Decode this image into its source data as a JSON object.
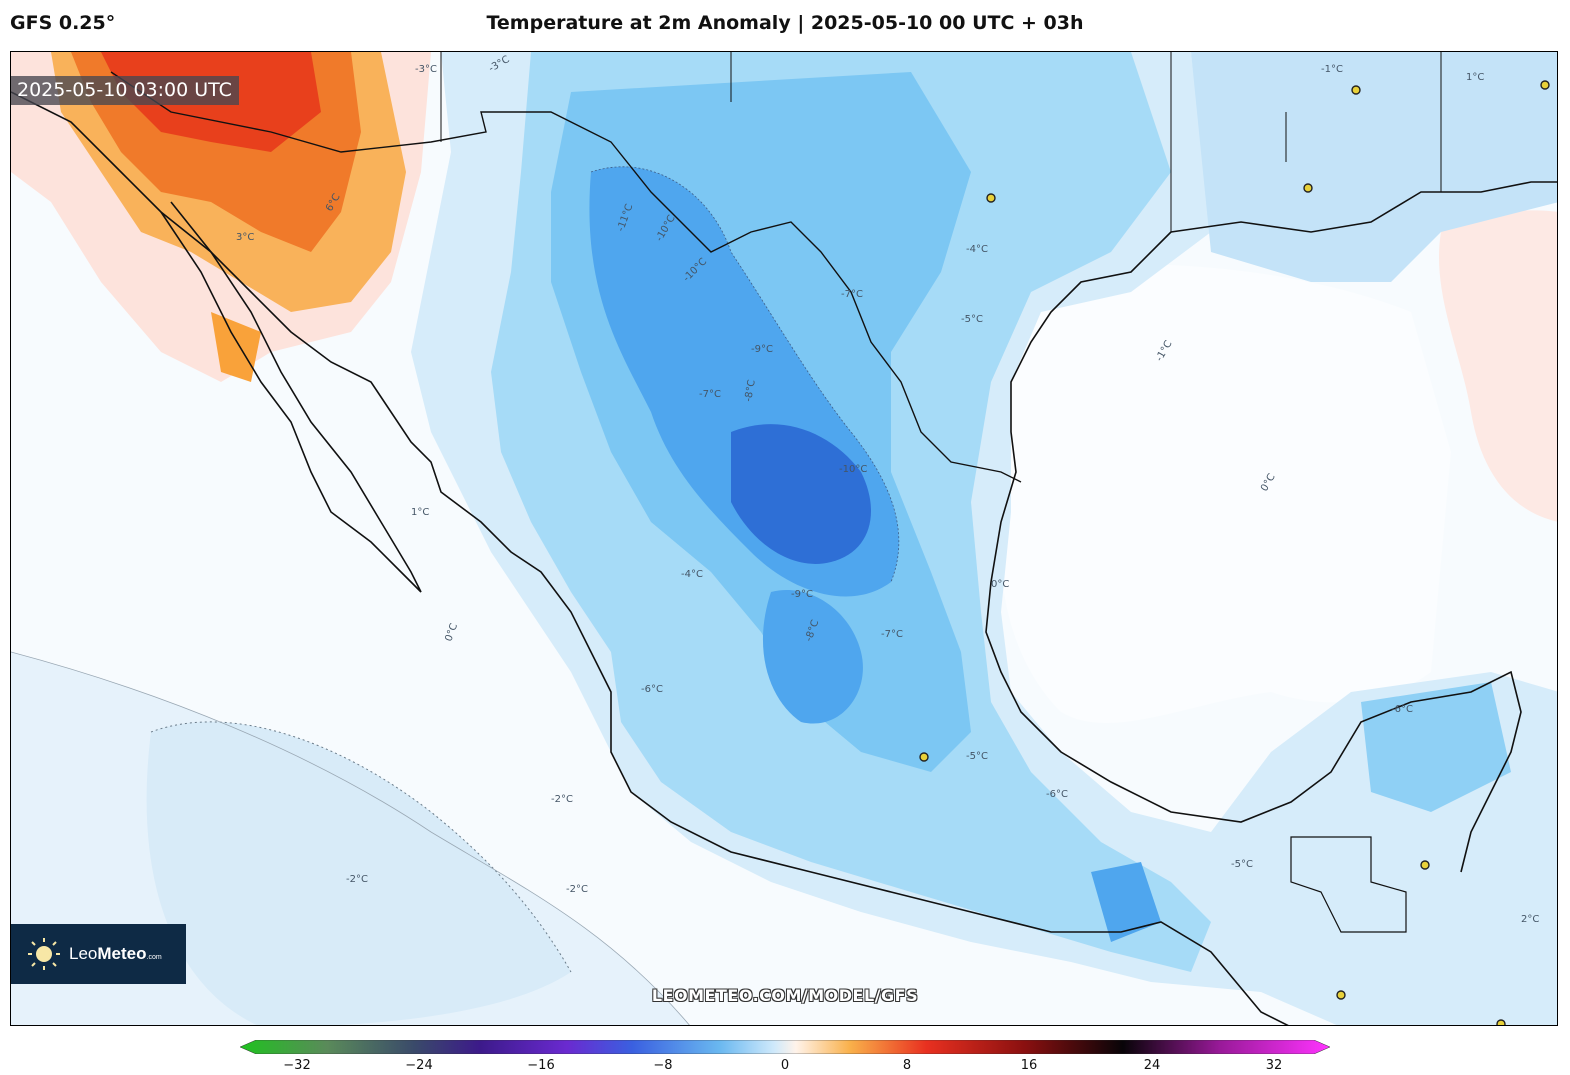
{
  "header": {
    "model": "GFS 0.25°",
    "title": "Temperature at 2m Anomaly | 2025-05-10 00 UTC + 03h"
  },
  "valid_time": "2025-05-10 03:00 UTC",
  "logo": {
    "name_light": "Leo",
    "name_bold": "Meteo",
    "suffix": ".com"
  },
  "watermark": "LEOMETEO.COM/MODEL/GFS",
  "colorbar": {
    "ticks": [
      "−32",
      "−24",
      "−16",
      "−8",
      "0",
      "8",
      "16",
      "24",
      "32"
    ],
    "min": -32,
    "max": 32
  },
  "contour_labels": [
    "-11°C",
    "-10°C",
    "-10°C",
    "-10°C",
    "-9°C",
    "-9°C",
    "-8°C",
    "-8°C",
    "-7°C",
    "-7°C",
    "-7°C",
    "-6°C",
    "-6°C",
    "-6°C",
    "-5°C",
    "-5°C",
    "-5°C",
    "-4°C",
    "-4°C",
    "-3°C",
    "-3°C",
    "-2°C",
    "-2°C",
    "-2°C",
    "-1°C",
    "-1°C",
    "0°C",
    "0°C",
    "0°C",
    "1°C",
    "1°C",
    "2°C",
    "3°C",
    "6°C"
  ],
  "colors": {
    "background_sea": "#f7fbfe",
    "cold_light": "#d6ecfa",
    "cold_mid": "#8fd0f5",
    "cold_strong": "#4fa6ee",
    "cold_deep": "#2e6fd6",
    "warm_light": "#fde3dc",
    "warm_mid": "#f9a23a",
    "warm_strong": "#e8401c",
    "logo_bg": "#0e2a45"
  }
}
